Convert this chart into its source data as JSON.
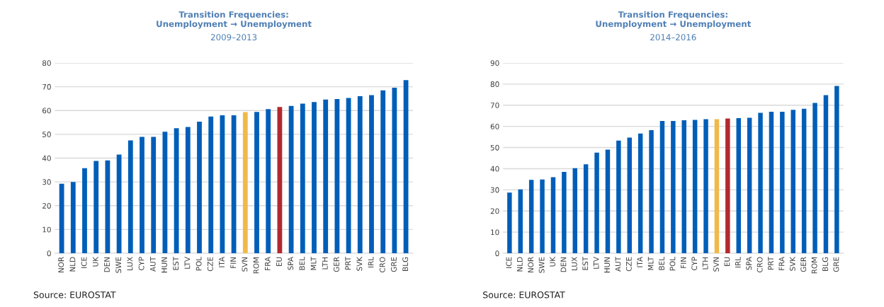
{
  "chart_data": [
    {
      "type": "bar",
      "title": "Transition Frequencies:\nUnemployment → Unemployment",
      "subtitle": "2009–2013",
      "categories": [
        "NOR",
        "NLD",
        "ICE",
        "UK",
        "DEN",
        "SWE",
        "LUX",
        "CYP",
        "AUT",
        "HUN",
        "EST",
        "LTV",
        "POL",
        "CZE",
        "ITA",
        "FIN",
        "SVN",
        "ROM",
        "FRA",
        "EU",
        "SPA",
        "BEL",
        "MLT",
        "LTH",
        "GER",
        "PRT",
        "SVK",
        "IRL",
        "CRO",
        "GRE",
        "BLG"
      ],
      "values": [
        29.2,
        30,
        35.8,
        38.8,
        39,
        41.5,
        47.4,
        48.9,
        48.9,
        51.1,
        52.6,
        53.1,
        55.3,
        57.5,
        58,
        58,
        59.3,
        59.4,
        60.6,
        61.5,
        61.9,
        62.9,
        63.6,
        64.6,
        64.8,
        65.3,
        66,
        66.5,
        68.5,
        69.6,
        72.8
      ],
      "colors": [
        "#005eb8",
        "#005eb8",
        "#005eb8",
        "#005eb8",
        "#005eb8",
        "#005eb8",
        "#005eb8",
        "#005eb8",
        "#005eb8",
        "#005eb8",
        "#005eb8",
        "#005eb8",
        "#005eb8",
        "#005eb8",
        "#005eb8",
        "#005eb8",
        "#f0b94a",
        "#005eb8",
        "#005eb8",
        "#b22a2e",
        "#005eb8",
        "#005eb8",
        "#005eb8",
        "#005eb8",
        "#005eb8",
        "#005eb8",
        "#005eb8",
        "#005eb8",
        "#005eb8",
        "#005eb8",
        "#005eb8"
      ],
      "ylim": [
        0,
        80
      ],
      "yticks": [
        0,
        10,
        20,
        30,
        40,
        50,
        60,
        70,
        80
      ],
      "grid": "y",
      "annotations": [
        "Source: EUROSTAT"
      ]
    },
    {
      "type": "bar",
      "title": "Transition Frequencies:\nUnemployment → Unemployment",
      "subtitle": "2014–2016",
      "categories": [
        "ICE",
        "NLD",
        "NOR",
        "SWE",
        "UK",
        "DEN",
        "LUX",
        "EST",
        "LTV",
        "HUN",
        "AUT",
        "CZE",
        "ITA",
        "MLT",
        "BEL",
        "POL",
        "FIN",
        "CYP",
        "LTH",
        "SVN",
        "EU",
        "IRL",
        "SPA",
        "CRO",
        "PRT",
        "FRA",
        "SVK",
        "GER",
        "ROM",
        "BLG",
        "GRE"
      ],
      "values": [
        28.7,
        30.2,
        34.7,
        34.9,
        36,
        38.5,
        40.2,
        42.1,
        47.6,
        49,
        53.3,
        54.7,
        56.6,
        58.2,
        62.6,
        62.6,
        62.9,
        63.1,
        63.4,
        63.4,
        63.7,
        63.9,
        64.1,
        66.4,
        66.9,
        66.9,
        67.8,
        68.3,
        71.1,
        74.8,
        79.1
      ],
      "colors": [
        "#005eb8",
        "#005eb8",
        "#005eb8",
        "#005eb8",
        "#005eb8",
        "#005eb8",
        "#005eb8",
        "#005eb8",
        "#005eb8",
        "#005eb8",
        "#005eb8",
        "#005eb8",
        "#005eb8",
        "#005eb8",
        "#005eb8",
        "#005eb8",
        "#005eb8",
        "#005eb8",
        "#005eb8",
        "#f0b94a",
        "#b22a2e",
        "#005eb8",
        "#005eb8",
        "#005eb8",
        "#005eb8",
        "#005eb8",
        "#005eb8",
        "#005eb8",
        "#005eb8",
        "#005eb8",
        "#005eb8"
      ],
      "ylim": [
        0,
        90
      ],
      "yticks": [
        0,
        10,
        20,
        30,
        40,
        50,
        60,
        70,
        80,
        90
      ],
      "grid": "y",
      "annotations": [
        "Source: EUROSTAT"
      ]
    }
  ]
}
